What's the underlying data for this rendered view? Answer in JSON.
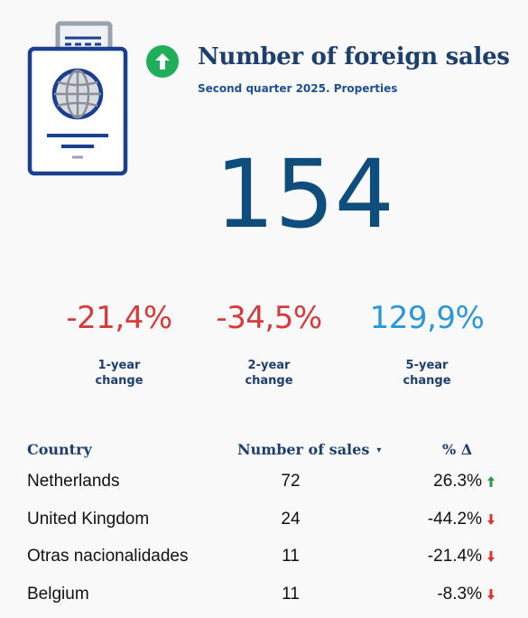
{
  "header": {
    "title": "Number of foreign sales",
    "subtitle": "Second quarter 2025. Properties",
    "trend_icon": "arrow-up-circle-icon",
    "illustration_icon": "passport-icon"
  },
  "main_value": "154",
  "changes": [
    {
      "value": "-21,4%",
      "line1": "1-year",
      "line2": "change",
      "color": "#d63a3a"
    },
    {
      "value": "-34,5%",
      "line1": "2-year",
      "line2": "change",
      "color": "#d63a3a"
    },
    {
      "value": "129,9%",
      "line1": "5-year",
      "line2": "change",
      "color": "#2a97d8"
    }
  ],
  "table": {
    "headers": {
      "country": "Country",
      "sales": "Number of sales",
      "sort_icon": "▾",
      "pct": "% Δ"
    },
    "rows": [
      {
        "country": "Netherlands",
        "sales": "72",
        "pct": "26.3%",
        "trend": "up"
      },
      {
        "country": "United Kingdom",
        "sales": "24",
        "pct": "-44.2%",
        "trend": "down"
      },
      {
        "country": "Otras nacionalidades",
        "sales": "11",
        "pct": "-21.4%",
        "trend": "down"
      },
      {
        "country": "Belgium",
        "sales": "11",
        "pct": "-8.3%",
        "trend": "down"
      }
    ]
  },
  "colors": {
    "up": "#2e9a48",
    "down": "#e03434",
    "navy": "#1d3f6e",
    "big": "#0e4d7c"
  }
}
